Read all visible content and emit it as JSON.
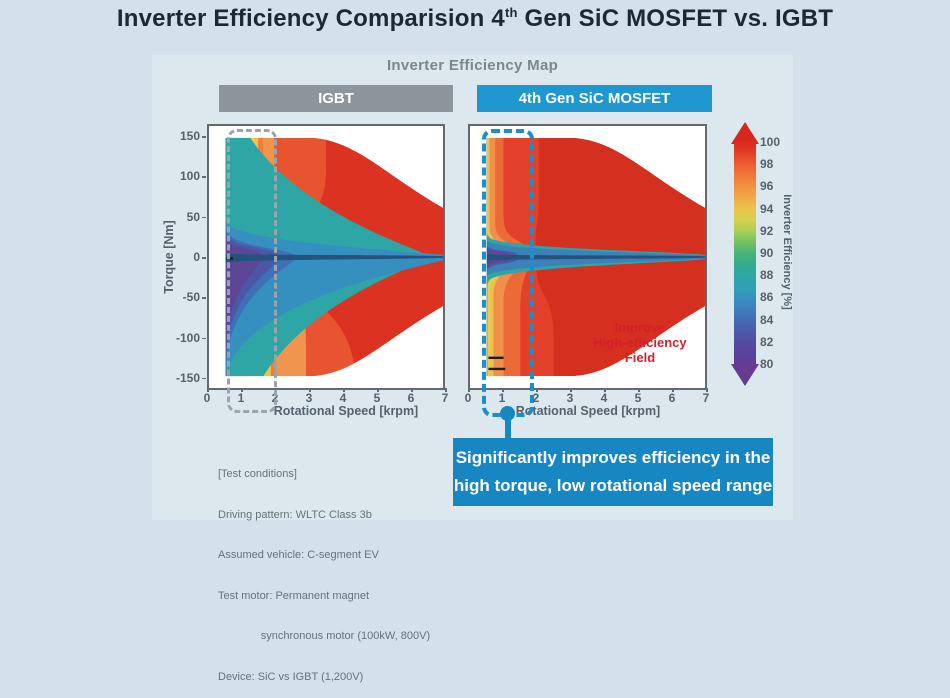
{
  "slide": {
    "title_prefix": "Inverter Efficiency Comparision 4",
    "title_sup": "th",
    "title_suffix": " Gen SiC MOSFET vs. IGBT"
  },
  "panel": {
    "heading": "Inverter Efficiency Map"
  },
  "charts": {
    "igbt_label": "IGBT",
    "sic_label": "4th Gen SiC MOSFET",
    "x_label": "Rotational Speed [krpm]",
    "y_label": "Torque [Nm]",
    "x_ticks": [
      0,
      1,
      2,
      3,
      4,
      5,
      6,
      7
    ],
    "y_ticks": [
      150,
      100,
      50,
      0,
      -50,
      -100,
      -150
    ],
    "annotation": [
      "Improve",
      "High-efficiency",
      "Field"
    ]
  },
  "colorbar": {
    "label": "Inverter Efficiency [%]",
    "ticks": [
      100,
      98,
      96,
      94,
      92,
      90,
      88,
      86,
      84,
      82,
      80
    ],
    "stops": [
      "#d7281d",
      "#e03b24",
      "#ea5a2e",
      "#f0763a",
      "#f18f40",
      "#f0a845",
      "#ecc24c",
      "#d8d050",
      "#a8cf57",
      "#71c163",
      "#47b377",
      "#32ab92",
      "#2da6a5",
      "#31a0b5",
      "#3590c0",
      "#3f7cbb",
      "#4567b1",
      "#4d57a7",
      "#54499f",
      "#5d4097",
      "#663b91"
    ]
  },
  "chart_data": [
    {
      "type": "heatmap",
      "name": "IGBT",
      "xlabel": "Rotational Speed [krpm]",
      "ylabel": "Torque [Nm]",
      "xlim": [
        0,
        7
      ],
      "ylim": [
        -165,
        165
      ],
      "efficiency_range_pct": [
        80,
        100
      ],
      "envelope": {
        "x_start": 0.5,
        "x_full": 3.1,
        "t_max": 150,
        "t_end": 62
      },
      "base_color": "#db3222",
      "bands": [
        [
          "#e85330",
          3.5,
          4.4,
          2.45,
          30,
          90,
          135
        ],
        [
          "#f0954d",
          1.95,
          2.9,
          2.7,
          20,
          55,
          90
        ],
        [
          "#f07e36",
          1.62,
          2.0,
          3.0,
          11,
          36,
          60
        ],
        [
          "#eec24c",
          1.47,
          1.85,
          3.3,
          8,
          34,
          55
        ],
        [
          "#ddd14f",
          1.33,
          1.7,
          3.7,
          6.5,
          32,
          52
        ],
        [
          "#a8cf57",
          1.18,
          1.55,
          4.1,
          5.5,
          31,
          50
        ],
        [
          "#71c163",
          1.02,
          1.38,
          4.6,
          4.5,
          30,
          48
        ],
        [
          "#47b377",
          0.8,
          1.2,
          5.2,
          4,
          30,
          46
        ],
        [
          "#2da6a5",
          0.5,
          0.95,
          6.6,
          4,
          200,
          200
        ],
        [
          "#3590c0",
          0.5,
          0.5,
          7.3,
          3,
          38,
          130
        ],
        [
          "#3f6fb5",
          0.5,
          0.5,
          2.6,
          5,
          30,
          118
        ],
        [
          "#4d57a7",
          0.5,
          0.5,
          2.1,
          6,
          26,
          108
        ],
        [
          "#5d4598",
          0.5,
          0.5,
          1.6,
          6,
          21,
          98
        ],
        [
          "#26527e",
          0.5,
          0.5,
          7.3,
          1.5,
          4,
          6
        ]
      ],
      "marks": [
        {
          "x1": 0.52,
          "x2": 0.72,
          "t": -2
        }
      ]
    },
    {
      "type": "heatmap",
      "name": "4th Gen SiC MOSFET",
      "xlabel": "Rotational Speed [krpm]",
      "ylabel": "Torque [Nm]",
      "xlim": [
        0,
        7
      ],
      "ylim": [
        -165,
        165
      ],
      "efficiency_range_pct": [
        80,
        100
      ],
      "envelope": {
        "x_start": 0.5,
        "x_full": 3.1,
        "t_max": 150,
        "t_end": 62
      },
      "base_color": "#d52f20",
      "bands": [
        [
          "#e2402a",
          2.05,
          2.5,
          1.95,
          26,
          70,
          90
        ],
        [
          "#ec6a35",
          1.0,
          1.5,
          1.75,
          12,
          40,
          55
        ],
        [
          "#f0914a",
          0.75,
          1.0,
          1.6,
          8,
          34,
          45
        ],
        [
          "#eec24c",
          0.58,
          0.7,
          1.5,
          5,
          30,
          38
        ],
        [
          "#ddd14f",
          0.5,
          0.6,
          1.8,
          4,
          28,
          34
        ],
        [
          "#47b377",
          0.5,
          0.52,
          2.4,
          3.5,
          26,
          30
        ],
        [
          "#2da6a5",
          0.5,
          0.5,
          7.3,
          3.5,
          22,
          26
        ],
        [
          "#3b82bb",
          0.5,
          0.5,
          7.3,
          2.4,
          17,
          20
        ],
        [
          "#4d57a7",
          0.5,
          0.5,
          1.45,
          5,
          13,
          15
        ],
        [
          "#5d4598",
          0.5,
          0.5,
          1.2,
          4,
          10,
          12
        ],
        [
          "#26527e",
          0.5,
          0.5,
          7.3,
          1.3,
          3,
          4
        ]
      ],
      "marks": [
        {
          "x1": 0.55,
          "x2": 1.0,
          "t": -127
        },
        {
          "x1": 0.55,
          "x2": 1.05,
          "t": -141
        }
      ]
    }
  ],
  "test_conditions": {
    "lines": [
      "[Test conditions]",
      "Driving pattern: WLTC Class 3b",
      "Assumed vehicle: C-segment EV",
      "Test motor: Permanent magnet",
      "              synchronous motor (100kW, 800V)",
      "Device: SiC vs IGBT (1,200V)"
    ]
  },
  "callout": {
    "line1": "Significantly improves efficiency in the",
    "line2": "high torque, low rotational speed range"
  },
  "colors": {
    "slide_bg": "#d4e1ea",
    "panel_bg": "#dce8ee",
    "igbt_chip": "#8d959c",
    "sic_chip": "#1f98d2",
    "callout_blue": "#1787c3",
    "annotation_red": "#d5202c",
    "dashed_gray": "#9aa5ab",
    "dashed_blue": "#1b8fcb"
  }
}
